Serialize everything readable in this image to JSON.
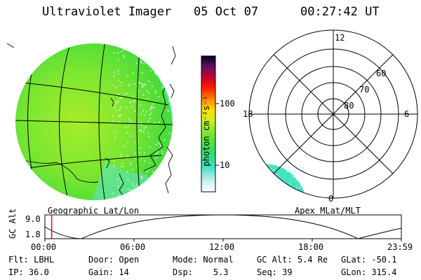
{
  "header": {
    "title": "Ultraviolet Imager",
    "date": "05 Oct 07",
    "time": "00:27:42 UT"
  },
  "colors": {
    "aurora_green": "#44e034",
    "aurora_yellow": "#a8f028",
    "aurora_cyan": "#3ce6c8",
    "red_marker": "#ff0000"
  },
  "geographic_panel": {
    "label": "Geographic Lat/Lon"
  },
  "polar_panel": {
    "label": "Apex MLat/MLT",
    "mlt_labels": {
      "top": "12",
      "left": "18",
      "right": "6",
      "bottom": "0"
    },
    "mlat_labels": [
      "60",
      "70",
      "80"
    ]
  },
  "colorbar": {
    "unit_label": "photon cm⁻²s⁻¹",
    "ticks": [
      "100",
      "10"
    ],
    "scale": "log"
  },
  "altitude_plot": {
    "ylabel": "GC Alt",
    "ymax_label": "9.0",
    "ymin_label": "1.8",
    "x_ticks": [
      "00:00",
      "06:00",
      "12:00",
      "18:00",
      "23:59"
    ],
    "current_time_fraction": 0.019
  },
  "info": {
    "row1": [
      {
        "key": "Flt:",
        "value": "LBHL"
      },
      {
        "key": "Door:",
        "value": "Open"
      },
      {
        "key": "Mode:",
        "value": "Normal"
      },
      {
        "key": "GC Alt:",
        "value": "5.4 Re"
      },
      {
        "key": "GLat:",
        "value": "-50.1"
      }
    ],
    "row2": [
      {
        "key": "IP:",
        "value": "36.0"
      },
      {
        "key": "Gain:",
        "value": "14"
      },
      {
        "key": "Dsp:",
        "value": "5.3"
      },
      {
        "key": "Seq:",
        "value": "39"
      },
      {
        "key": "GLon:",
        "value": "315.4"
      }
    ]
  }
}
